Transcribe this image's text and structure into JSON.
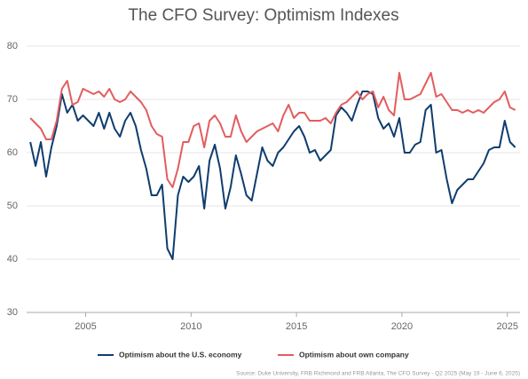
{
  "chart_data": {
    "type": "line",
    "title": "The CFO Survey: Optimism Indexes",
    "source": "Source: Duke University, FRB Richmond and FRB Atlanta, The CFO Survey - Q2 2025 (May 19 - June 6, 2025)",
    "x": [
      2002.375,
      2002.625,
      2002.875,
      2003.125,
      2003.375,
      2003.625,
      2003.875,
      2004.125,
      2004.375,
      2004.625,
      2004.875,
      2005.125,
      2005.375,
      2005.625,
      2005.875,
      2006.125,
      2006.375,
      2006.625,
      2006.875,
      2007.125,
      2007.375,
      2007.625,
      2007.875,
      2008.125,
      2008.375,
      2008.625,
      2008.875,
      2009.125,
      2009.375,
      2009.625,
      2009.875,
      2010.125,
      2010.375,
      2010.625,
      2010.875,
      2011.125,
      2011.375,
      2011.625,
      2011.875,
      2012.125,
      2012.375,
      2012.625,
      2012.875,
      2013.125,
      2013.375,
      2013.625,
      2013.875,
      2014.125,
      2014.375,
      2014.625,
      2014.875,
      2015.125,
      2015.375,
      2015.625,
      2015.875,
      2016.125,
      2016.375,
      2016.625,
      2016.875,
      2017.125,
      2017.375,
      2017.625,
      2017.875,
      2018.125,
      2018.375,
      2018.625,
      2018.875,
      2019.125,
      2019.375,
      2019.625,
      2019.875,
      2020.125,
      2020.375,
      2020.625,
      2020.875,
      2021.125,
      2021.375,
      2021.625,
      2021.875,
      2022.125,
      2022.375,
      2022.625,
      2022.875,
      2023.125,
      2023.375,
      2023.625,
      2023.875,
      2024.125,
      2024.375,
      2024.625,
      2024.875,
      2025.125,
      2025.375
    ],
    "series": [
      {
        "name": "Optimism about the U.S. economy",
        "color": "#0f3d6e",
        "values": [
          62,
          57.5,
          62,
          55.5,
          61,
          65,
          71,
          67.5,
          69,
          66,
          67,
          66,
          65,
          67.5,
          64.5,
          67.5,
          64.5,
          63,
          66,
          67.5,
          65,
          60.5,
          57,
          52,
          52,
          54,
          42,
          40,
          52,
          55.5,
          54.5,
          55.5,
          57.5,
          49.5,
          58.5,
          61.5,
          57,
          49.5,
          53.5,
          59.5,
          56,
          52,
          51,
          56,
          61,
          58.5,
          57.5,
          60,
          61,
          62.5,
          64,
          65,
          63,
          60,
          60.5,
          58.5,
          59.5,
          60.5,
          67,
          68.5,
          67.5,
          66,
          69,
          71.5,
          71.5,
          71,
          66.5,
          64.5,
          65.5,
          63,
          66.5,
          60,
          60,
          61.5,
          62,
          68,
          69,
          60,
          60.5,
          55,
          50.5,
          53,
          54,
          55,
          55,
          56.5,
          58,
          60.5,
          61,
          61,
          66,
          62,
          61
        ]
      },
      {
        "name": "Optimism about own company",
        "color": "#e35d5f",
        "values": [
          66.5,
          65.5,
          64.5,
          62.5,
          62.5,
          66,
          72,
          73.5,
          69,
          69.5,
          72,
          71.5,
          71,
          71.5,
          70.5,
          72,
          70,
          69.5,
          70,
          71.5,
          70.5,
          69.5,
          68,
          65,
          63.5,
          63,
          55,
          53.5,
          57,
          62,
          62,
          65,
          65.5,
          61,
          66,
          67,
          65.5,
          63,
          63,
          67,
          64,
          62,
          63,
          64,
          64.5,
          65,
          65.5,
          64,
          67,
          69,
          66.5,
          67.5,
          67.5,
          66,
          66,
          66,
          66.5,
          65.5,
          67.5,
          69,
          69.5,
          70.5,
          71.5,
          70,
          71,
          71.5,
          68.5,
          70.5,
          68,
          67,
          75,
          70,
          70,
          70.5,
          71,
          73,
          75,
          70.5,
          71,
          69.5,
          68,
          68,
          67.5,
          68,
          67.5,
          68,
          67.5,
          68.5,
          69.5,
          70,
          71.5,
          68.5,
          68
        ]
      }
    ],
    "xlim": [
      2002.2,
      2025.6
    ],
    "xticks": [
      2005,
      2010,
      2015,
      2020,
      2025
    ],
    "ylim": [
      30,
      80
    ],
    "yticks": [
      30,
      40,
      50,
      60,
      70,
      80
    ],
    "grid": true
  }
}
